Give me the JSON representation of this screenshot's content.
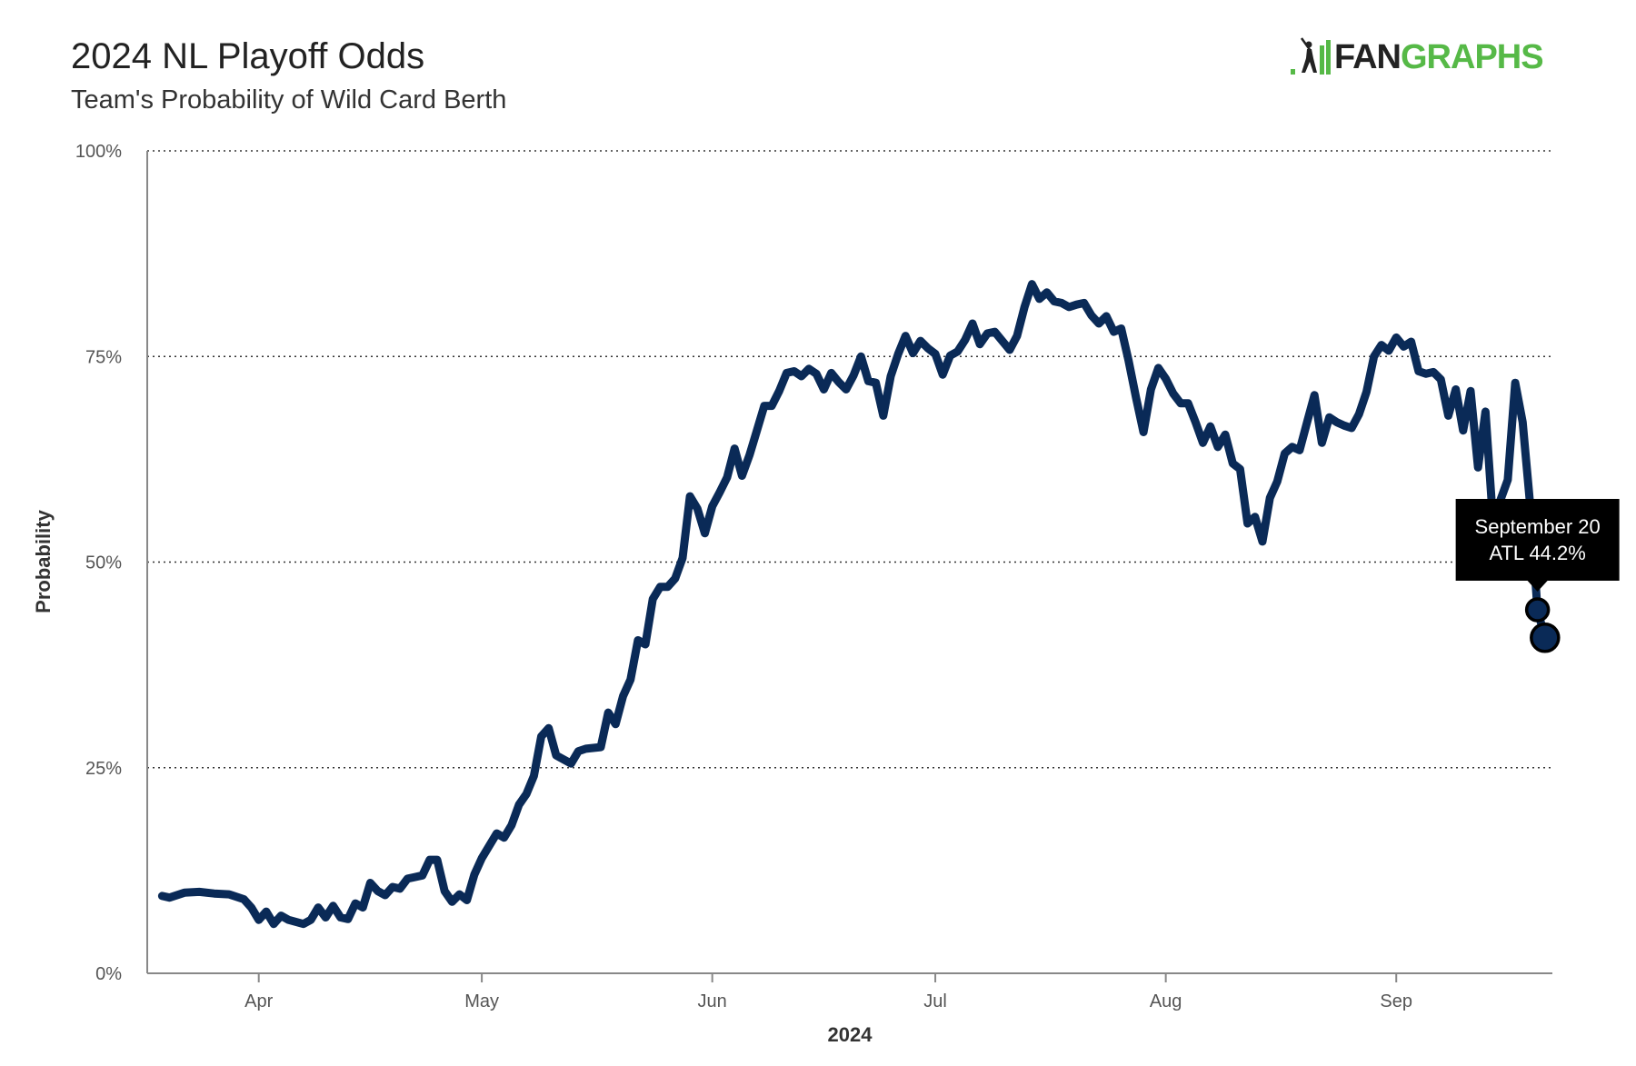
{
  "brand": {
    "name_part1": "FAN",
    "name_part2": "GRAPHS",
    "accent_color": "#56b947"
  },
  "chart_data": {
    "type": "line",
    "title": "2024 NL Playoff Odds",
    "subtitle": "Team's Probability of Wild Card Berth",
    "xlabel": "2024",
    "ylabel": "Probability",
    "y_ticks": [
      "0%",
      "25%",
      "50%",
      "75%",
      "100%"
    ],
    "ylim": [
      0,
      100
    ],
    "x_ticks": [
      {
        "label": "Apr",
        "date": "2024-04-01"
      },
      {
        "label": "May",
        "date": "2024-05-01"
      },
      {
        "label": "Jun",
        "date": "2024-06-01"
      },
      {
        "label": "Jul",
        "date": "2024-07-01"
      },
      {
        "label": "Aug",
        "date": "2024-08-01"
      },
      {
        "label": "Sep",
        "date": "2024-09-01"
      }
    ],
    "xlim": [
      "2024-03-17",
      "2024-09-22"
    ],
    "grid": "horizontal dotted",
    "line_color": "#0a2a57",
    "series": [
      {
        "name": "ATL",
        "points": [
          [
            "2024-03-19",
            9.4
          ],
          [
            "2024-03-20",
            9.2
          ],
          [
            "2024-03-22",
            9.8
          ],
          [
            "2024-03-24",
            9.9
          ],
          [
            "2024-03-26",
            9.7
          ],
          [
            "2024-03-28",
            9.6
          ],
          [
            "2024-03-30",
            9.0
          ],
          [
            "2024-03-31",
            8.0
          ],
          [
            "2024-04-01",
            6.5
          ],
          [
            "2024-04-02",
            7.5
          ],
          [
            "2024-04-03",
            6.0
          ],
          [
            "2024-04-04",
            7.0
          ],
          [
            "2024-04-05",
            6.5
          ],
          [
            "2024-04-07",
            6.0
          ],
          [
            "2024-04-08",
            6.5
          ],
          [
            "2024-04-09",
            8.0
          ],
          [
            "2024-04-10",
            6.8
          ],
          [
            "2024-04-11",
            8.2
          ],
          [
            "2024-04-12",
            6.8
          ],
          [
            "2024-04-13",
            6.6
          ],
          [
            "2024-04-14",
            8.5
          ],
          [
            "2024-04-15",
            8.0
          ],
          [
            "2024-04-16",
            11.0
          ],
          [
            "2024-04-17",
            10.0
          ],
          [
            "2024-04-18",
            9.5
          ],
          [
            "2024-04-19",
            10.5
          ],
          [
            "2024-04-20",
            10.3
          ],
          [
            "2024-04-21",
            11.5
          ],
          [
            "2024-04-22",
            11.7
          ],
          [
            "2024-04-23",
            11.9
          ],
          [
            "2024-04-24",
            13.8
          ],
          [
            "2024-04-25",
            13.8
          ],
          [
            "2024-04-26",
            10.0
          ],
          [
            "2024-04-27",
            8.7
          ],
          [
            "2024-04-28",
            9.6
          ],
          [
            "2024-04-29",
            8.9
          ],
          [
            "2024-04-30",
            12.0
          ],
          [
            "2024-05-01",
            14.0
          ],
          [
            "2024-05-02",
            15.5
          ],
          [
            "2024-05-03",
            17.0
          ],
          [
            "2024-05-04",
            16.5
          ],
          [
            "2024-05-05",
            18.0
          ],
          [
            "2024-05-06",
            20.5
          ],
          [
            "2024-05-07",
            21.8
          ],
          [
            "2024-05-08",
            24.0
          ],
          [
            "2024-05-09",
            28.8
          ],
          [
            "2024-05-10",
            29.8
          ],
          [
            "2024-05-11",
            26.5
          ],
          [
            "2024-05-12",
            26.0
          ],
          [
            "2024-05-13",
            25.5
          ],
          [
            "2024-05-14",
            27.0
          ],
          [
            "2024-05-15",
            27.3
          ],
          [
            "2024-05-17",
            27.5
          ],
          [
            "2024-05-18",
            31.7
          ],
          [
            "2024-05-19",
            30.3
          ],
          [
            "2024-05-20",
            33.7
          ],
          [
            "2024-05-21",
            35.7
          ],
          [
            "2024-05-22",
            40.5
          ],
          [
            "2024-05-23",
            40.0
          ],
          [
            "2024-05-24",
            45.5
          ],
          [
            "2024-05-25",
            47.0
          ],
          [
            "2024-05-26",
            47.0
          ],
          [
            "2024-05-27",
            48.0
          ],
          [
            "2024-05-28",
            50.5
          ],
          [
            "2024-05-29",
            58.0
          ],
          [
            "2024-05-30",
            56.5
          ],
          [
            "2024-05-31",
            53.5
          ],
          [
            "2024-06-01",
            56.8
          ],
          [
            "2024-06-02",
            58.5
          ],
          [
            "2024-06-03",
            60.3
          ],
          [
            "2024-06-04",
            63.8
          ],
          [
            "2024-06-05",
            60.5
          ],
          [
            "2024-06-06",
            63.0
          ],
          [
            "2024-06-07",
            66.0
          ],
          [
            "2024-06-08",
            69.0
          ],
          [
            "2024-06-09",
            69.0
          ],
          [
            "2024-06-10",
            70.8
          ],
          [
            "2024-06-11",
            73.0
          ],
          [
            "2024-06-12",
            73.2
          ],
          [
            "2024-06-13",
            72.6
          ],
          [
            "2024-06-14",
            73.5
          ],
          [
            "2024-06-15",
            72.9
          ],
          [
            "2024-06-16",
            71.0
          ],
          [
            "2024-06-17",
            73.0
          ],
          [
            "2024-06-18",
            71.9
          ],
          [
            "2024-06-19",
            71.0
          ],
          [
            "2024-06-20",
            72.7
          ],
          [
            "2024-06-21",
            75.0
          ],
          [
            "2024-06-22",
            72.0
          ],
          [
            "2024-06-23",
            71.8
          ],
          [
            "2024-06-24",
            67.8
          ],
          [
            "2024-06-25",
            72.6
          ],
          [
            "2024-06-26",
            75.3
          ],
          [
            "2024-06-27",
            77.5
          ],
          [
            "2024-06-28",
            75.4
          ],
          [
            "2024-06-29",
            76.9
          ],
          [
            "2024-06-30",
            76.0
          ],
          [
            "2024-07-01",
            75.3
          ],
          [
            "2024-07-02",
            72.8
          ],
          [
            "2024-07-03",
            75.1
          ],
          [
            "2024-07-04",
            75.6
          ],
          [
            "2024-07-05",
            77.0
          ],
          [
            "2024-07-06",
            79.0
          ],
          [
            "2024-07-07",
            76.5
          ],
          [
            "2024-07-08",
            77.8
          ],
          [
            "2024-07-09",
            78.0
          ],
          [
            "2024-07-10",
            76.9
          ],
          [
            "2024-07-11",
            75.8
          ],
          [
            "2024-07-12",
            77.5
          ],
          [
            "2024-07-13",
            81.0
          ],
          [
            "2024-07-14",
            83.8
          ],
          [
            "2024-07-15",
            82.0
          ],
          [
            "2024-07-16",
            82.8
          ],
          [
            "2024-07-17",
            81.7
          ],
          [
            "2024-07-18",
            81.5
          ],
          [
            "2024-07-19",
            81.0
          ],
          [
            "2024-07-20",
            81.3
          ],
          [
            "2024-07-21",
            81.5
          ],
          [
            "2024-07-22",
            80.0
          ],
          [
            "2024-07-23",
            79.0
          ],
          [
            "2024-07-24",
            79.9
          ],
          [
            "2024-07-25",
            78.0
          ],
          [
            "2024-07-26",
            78.4
          ],
          [
            "2024-07-27",
            74.5
          ],
          [
            "2024-07-28",
            70.0
          ],
          [
            "2024-07-29",
            65.8
          ],
          [
            "2024-07-30",
            71.0
          ],
          [
            "2024-07-31",
            73.6
          ],
          [
            "2024-08-01",
            72.3
          ],
          [
            "2024-08-02",
            70.5
          ],
          [
            "2024-08-03",
            69.3
          ],
          [
            "2024-08-04",
            69.3
          ],
          [
            "2024-08-05",
            67.0
          ],
          [
            "2024-08-06",
            64.5
          ],
          [
            "2024-08-07",
            66.5
          ],
          [
            "2024-08-08",
            64.0
          ],
          [
            "2024-08-09",
            65.5
          ],
          [
            "2024-08-10",
            62.0
          ],
          [
            "2024-08-11",
            61.3
          ],
          [
            "2024-08-12",
            54.7
          ],
          [
            "2024-08-13",
            55.5
          ],
          [
            "2024-08-14",
            52.5
          ],
          [
            "2024-08-15",
            57.8
          ],
          [
            "2024-08-16",
            59.8
          ],
          [
            "2024-08-17",
            63.2
          ],
          [
            "2024-08-18",
            64.0
          ],
          [
            "2024-08-19",
            63.6
          ],
          [
            "2024-08-20",
            67.0
          ],
          [
            "2024-08-21",
            70.3
          ],
          [
            "2024-08-22",
            64.5
          ],
          [
            "2024-08-23",
            67.6
          ],
          [
            "2024-08-24",
            67.0
          ],
          [
            "2024-08-25",
            66.6
          ],
          [
            "2024-08-26",
            66.3
          ],
          [
            "2024-08-27",
            68.0
          ],
          [
            "2024-08-28",
            70.7
          ],
          [
            "2024-08-29",
            75.0
          ],
          [
            "2024-08-30",
            76.4
          ],
          [
            "2024-08-31",
            75.7
          ],
          [
            "2024-09-01",
            77.3
          ],
          [
            "2024-09-02",
            76.2
          ],
          [
            "2024-09-03",
            76.8
          ],
          [
            "2024-09-04",
            73.2
          ],
          [
            "2024-09-05",
            72.9
          ],
          [
            "2024-09-06",
            73.1
          ],
          [
            "2024-09-07",
            72.2
          ],
          [
            "2024-09-08",
            67.8
          ],
          [
            "2024-09-09",
            71.0
          ],
          [
            "2024-09-10",
            66.0
          ],
          [
            "2024-09-11",
            70.8
          ],
          [
            "2024-09-12",
            61.5
          ],
          [
            "2024-09-13",
            68.3
          ],
          [
            "2024-09-14",
            55.0
          ],
          [
            "2024-09-15",
            57.5
          ],
          [
            "2024-09-16",
            60.0
          ],
          [
            "2024-09-17",
            71.8
          ],
          [
            "2024-09-18",
            67.0
          ],
          [
            "2024-09-19",
            57.0
          ],
          [
            "2024-09-20",
            44.2
          ],
          [
            "2024-09-21",
            40.8
          ]
        ]
      }
    ],
    "markers": [
      {
        "date": "2024-09-20",
        "value": 44.2
      },
      {
        "date": "2024-09-21",
        "value": 40.8
      }
    ],
    "tooltip": {
      "line1": "September 20",
      "line2": "ATL 44.2%",
      "date": "2024-09-20",
      "value": 44.2
    }
  }
}
